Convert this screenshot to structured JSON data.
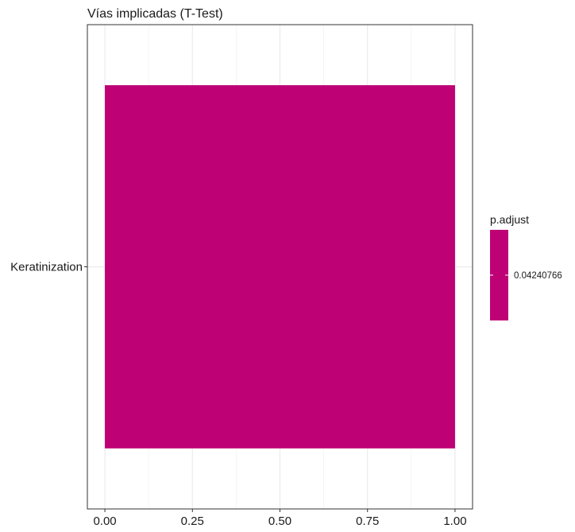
{
  "chart_data": {
    "type": "bar",
    "orientation": "horizontal",
    "title": "Vías implicadas (T-Test)",
    "xlabel": "",
    "ylabel": "",
    "categories": [
      "Keratinization"
    ],
    "values": [
      1.0
    ],
    "xlim": [
      -0.05,
      1.05
    ],
    "x_ticks": [
      "0.00",
      "0.25",
      "0.50",
      "0.75",
      "1.00"
    ],
    "x_tick_values": [
      0,
      0.25,
      0.5,
      0.75,
      1.0
    ],
    "grid": true,
    "legend": {
      "title": "p.adjust",
      "type": "colorbar",
      "position": "right",
      "labels": [
        "0.04240766"
      ]
    },
    "fill_color": "#BE0275"
  }
}
